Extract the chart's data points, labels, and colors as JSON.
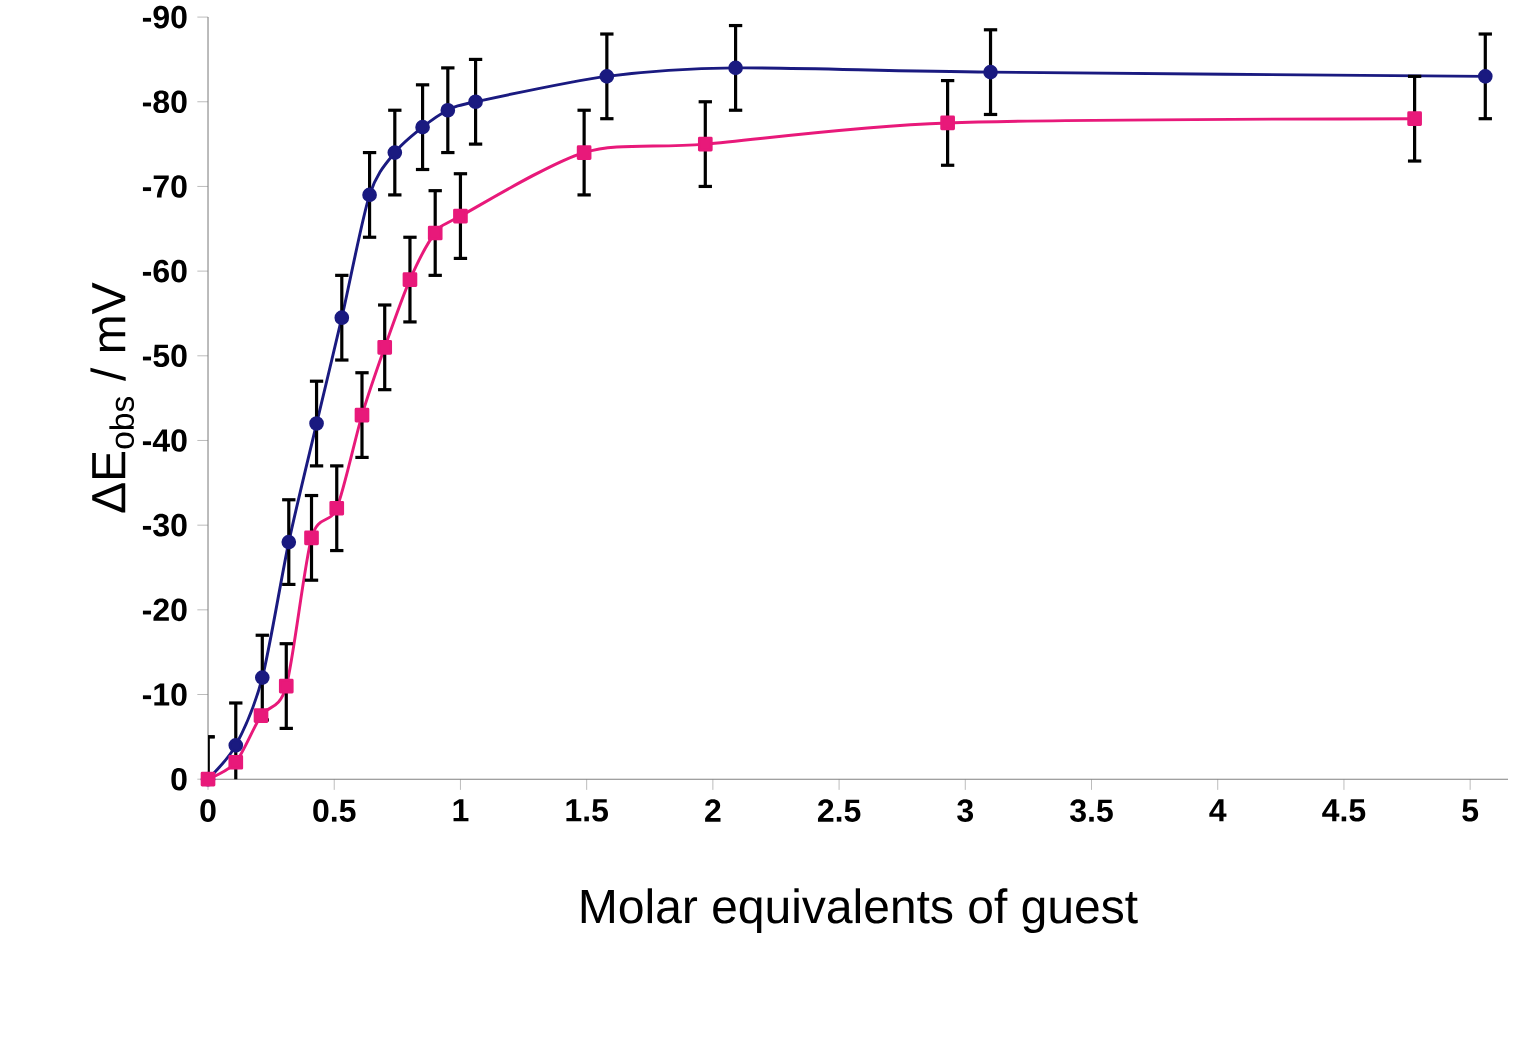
{
  "chart_data": {
    "type": "line",
    "xlabel": "Molar equivalents of guest",
    "ylabel": "ΔE$_{obs}$ / mV",
    "xlim": [
      0,
      5.15
    ],
    "ylim": [
      0,
      -90
    ],
    "xticks": [
      0,
      0.5,
      1,
      1.5,
      2,
      2.5,
      3,
      3.5,
      4,
      4.5,
      5
    ],
    "yticks": [
      0,
      -10,
      -20,
      -30,
      -40,
      -50,
      -60,
      -70,
      -80,
      -90
    ],
    "grid": false,
    "series": [
      {
        "color": "#1a1a80",
        "marker": "circle",
        "x": [
          0,
          0.11,
          0.215,
          0.32,
          0.43,
          0.53,
          0.64,
          0.74,
          0.85,
          0.95,
          1.06,
          1.58,
          2.09,
          3.1,
          5.06
        ],
        "values": [
          0,
          -4,
          -12,
          -28,
          -42,
          -54.5,
          -69,
          -74,
          -77,
          -79,
          -80,
          -83,
          -84,
          -83.5,
          -83
        ],
        "errors": [
          5,
          5,
          5,
          5,
          5,
          5,
          5,
          5,
          5,
          5,
          5,
          5,
          5,
          5,
          5
        ]
      },
      {
        "color": "#e8197a",
        "marker": "square",
        "x": [
          0,
          0.11,
          0.21,
          0.31,
          0.41,
          0.51,
          0.61,
          0.7,
          0.8,
          0.9,
          1.0,
          1.49,
          1.97,
          2.93,
          4.78
        ],
        "values": [
          0,
          -2,
          -7.5,
          -11,
          -28.5,
          -32,
          -43,
          -51,
          -59,
          -64.5,
          -66.5,
          -74,
          -75,
          -77.5,
          -78
        ],
        "errors": [
          5,
          null,
          null,
          5,
          5,
          5,
          5,
          5,
          5,
          5,
          5,
          5,
          5,
          5,
          5
        ]
      }
    ]
  }
}
